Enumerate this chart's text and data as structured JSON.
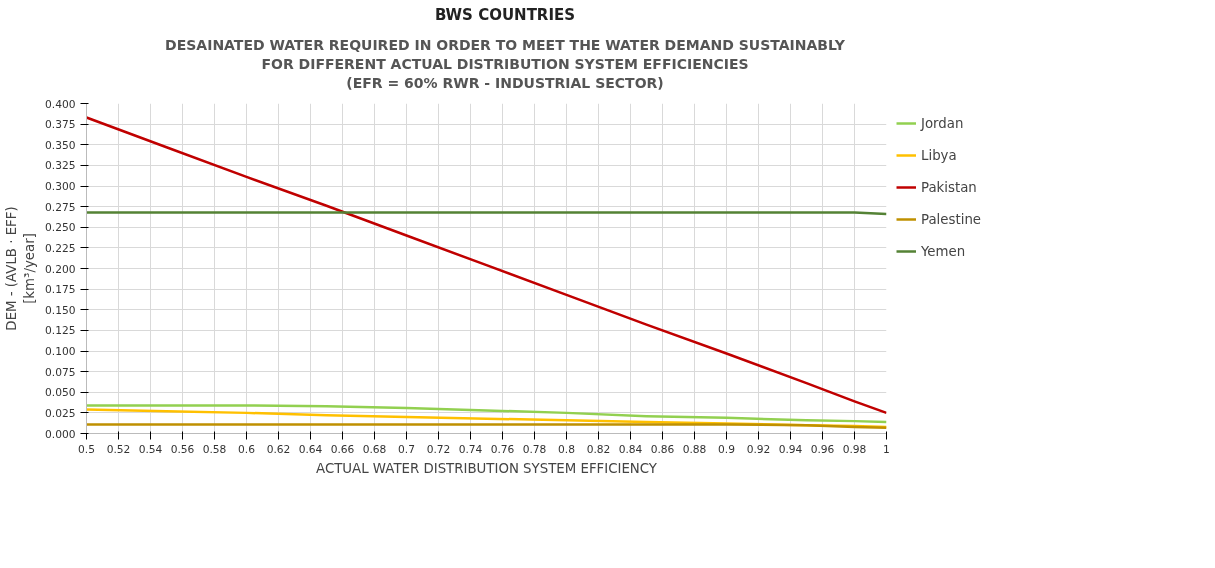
{
  "chart_data": {
    "type": "line",
    "title": "BWS COUNTRIES",
    "subtitle": "DESAINATED WATER REQUIRED IN ORDER TO MEET THE WATER DEMAND SUSTAINABLY\nFOR DIFFERENT ACTUAL DISTRIBUTION SYSTEM EFFICIENCIES\n(EFR = 60% RWR - INDUSTRIAL SECTOR)",
    "xlabel": "ACTUAL WATER DISTRIBUTION SYSTEM EFFICIENCY",
    "ylabel": "DEM - (AVLB · EFF)\n[km³/year]",
    "x": [
      0.5,
      0.55,
      0.6,
      0.65,
      0.7,
      0.75,
      0.8,
      0.85,
      0.9,
      0.95,
      0.98,
      1
    ],
    "series": [
      {
        "name": "Jordan",
        "color": "#92d050",
        "values": [
          0.034,
          0.034,
          0.034,
          0.033,
          0.031,
          0.028,
          0.025,
          0.021,
          0.019,
          0.016,
          0.015,
          0.014
        ]
      },
      {
        "name": "Libya",
        "color": "#ffc000",
        "values": [
          0.029,
          0.027,
          0.025,
          0.022,
          0.02,
          0.018,
          0.016,
          0.014,
          0.012,
          0.01,
          0.009,
          0.008
        ]
      },
      {
        "name": "Pakistan",
        "color": "#c00000",
        "values": [
          0.383,
          0.347,
          0.311,
          0.276,
          0.24,
          0.204,
          0.168,
          0.132,
          0.097,
          0.061,
          0.039,
          0.025
        ]
      },
      {
        "name": "Palestine",
        "color": "#bf9000",
        "values": [
          0.011,
          0.011,
          0.011,
          0.011,
          0.011,
          0.011,
          0.011,
          0.011,
          0.011,
          0.01,
          0.008,
          0.007
        ]
      },
      {
        "name": "Yemen",
        "color": "#548235",
        "values": [
          0.268,
          0.268,
          0.268,
          0.268,
          0.268,
          0.268,
          0.268,
          0.268,
          0.268,
          0.268,
          0.268,
          0.266
        ]
      }
    ],
    "xlim": [
      0.5,
      1
    ],
    "xticks": [
      0.5,
      0.52,
      0.54,
      0.56,
      0.58,
      0.6,
      0.62,
      0.64,
      0.66,
      0.68,
      0.7,
      0.72,
      0.74,
      0.76,
      0.78,
      0.8,
      0.82,
      0.84,
      0.86,
      0.88,
      0.9,
      0.92,
      0.94,
      0.96,
      0.98,
      1
    ],
    "ylim": [
      0,
      0.4
    ],
    "yticks": [
      {
        "value": 0,
        "label": "0.000"
      },
      {
        "value": 0.025,
        "label": "0.025"
      },
      {
        "value": 0.05,
        "label": "0.050"
      },
      {
        "value": 0.075,
        "label": "0.075"
      },
      {
        "value": 0.1,
        "label": "0.100"
      },
      {
        "value": 0.125,
        "label": "0.125"
      },
      {
        "value": 0.15,
        "label": "0.150"
      },
      {
        "value": 0.175,
        "label": "0.175"
      },
      {
        "value": 0.2,
        "label": "0.200"
      },
      {
        "value": 0.225,
        "label": "0.225"
      },
      {
        "value": 0.25,
        "label": "0.250"
      },
      {
        "value": 0.275,
        "label": "0.275"
      },
      {
        "value": 0.3,
        "label": "0.300"
      },
      {
        "value": 0.325,
        "label": "0.325"
      },
      {
        "value": 0.35,
        "label": "0.350"
      },
      {
        "value": 0.375,
        "label": "0.375"
      },
      {
        "value": 0.4,
        "label": "0.400"
      }
    ],
    "grid": true,
    "legend": "right",
    "marker": "none",
    "line_style": "solid"
  }
}
